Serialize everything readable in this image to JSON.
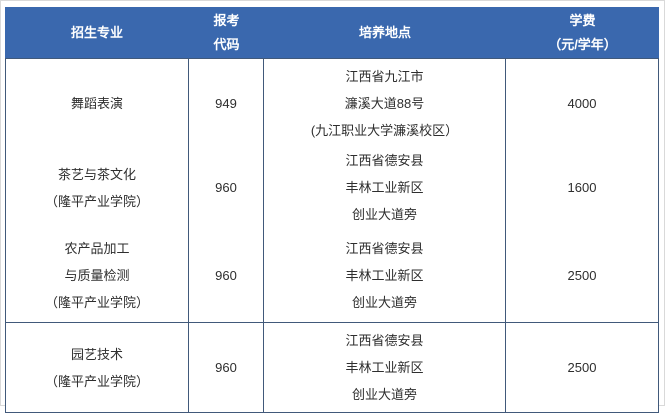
{
  "colors": {
    "header_bg": "#3A68AE",
    "header_text": "#FFFFFF",
    "cell_border": "#41597A",
    "code_red": "#E02222",
    "body_text": "#2E2E2E"
  },
  "header": {
    "major": [
      "招生专业"
    ],
    "code": [
      "报考",
      "代码"
    ],
    "location": [
      "培养地点"
    ],
    "tuition": [
      "学费",
      "（元/学年）"
    ]
  },
  "rows": [
    {
      "major": [
        "舞蹈表演"
      ],
      "code": "949",
      "location": [
        "江西省九江市",
        "濂溪大道88号",
        "(九江职业大学濂溪校区）"
      ],
      "tuition": "4000"
    },
    {
      "major": [
        "茶艺与茶文化",
        "（隆平产业学院）"
      ],
      "code": "960",
      "location": [
        "江西省德安县",
        "丰林工业新区",
        "创业大道旁"
      ],
      "tuition": "1600"
    },
    {
      "major": [
        "农产品加工",
        "与质量检测",
        "（隆平产业学院）"
      ],
      "code": "960",
      "location": [
        "江西省德安县",
        "丰林工业新区",
        "创业大道旁"
      ],
      "tuition": "2500"
    },
    {
      "major": [
        "园艺技术",
        "（隆平产业学院）"
      ],
      "code": "960",
      "location": [
        "江西省德安县",
        "丰林工业新区",
        "创业大道旁"
      ],
      "tuition": "2500"
    }
  ]
}
